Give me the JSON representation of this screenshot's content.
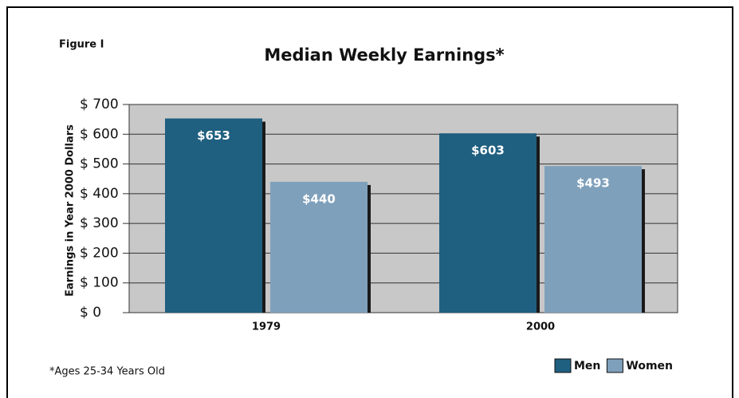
{
  "chart_data": {
    "type": "bar",
    "figure_label": "Figure I",
    "title": "Median Weekly Earnings*",
    "y_label": "Earnings in Year 2000 Dollars",
    "footnote": "*Ages 25-34 Years Old",
    "categories": [
      "1979",
      "2000"
    ],
    "series": [
      {
        "name": "Men",
        "color": "#1f5f80",
        "values": [
          653,
          603
        ],
        "value_labels": [
          "$653",
          "$603"
        ]
      },
      {
        "name": "Women",
        "color": "#7fa0bb",
        "values": [
          440,
          493
        ],
        "value_labels": [
          "$440",
          "$493"
        ]
      }
    ],
    "ylim": [
      0,
      700
    ],
    "yticks": [
      {
        "value": 0,
        "label": "$ 0"
      },
      {
        "value": 100,
        "label": "$ 100"
      },
      {
        "value": 200,
        "label": "$ 200"
      },
      {
        "value": 300,
        "label": "$ 300"
      },
      {
        "value": 400,
        "label": "$ 400"
      },
      {
        "value": 500,
        "label": "$ 500"
      },
      {
        "value": 600,
        "label": "$ 600"
      },
      {
        "value": 700,
        "label": "$ 700"
      }
    ],
    "grid": true,
    "legend": "bottom-right"
  }
}
